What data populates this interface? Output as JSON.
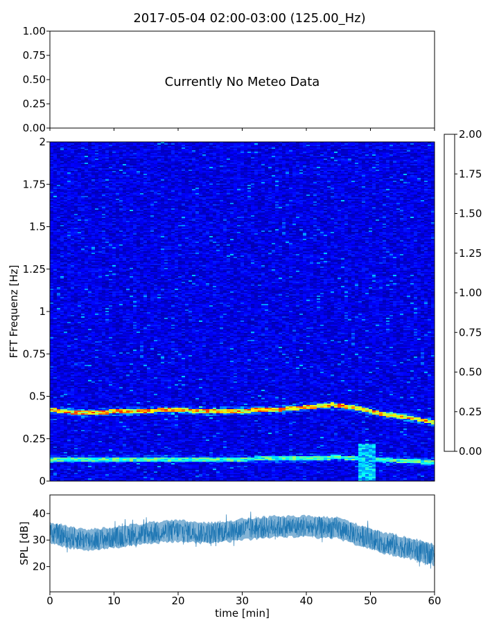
{
  "title": "2017-05-04 02:00-03:00 (125.00_Hz)",
  "chart_data": [
    {
      "type": "line",
      "panel": "meteo",
      "message": "Currently No Meteo Data",
      "xlim": [
        0,
        60
      ],
      "ylim": [
        0,
        1
      ],
      "ytick_labels": [
        "0.00",
        "0.25",
        "0.50",
        "0.75",
        "1.00"
      ],
      "yticks": [
        0,
        0.25,
        0.5,
        0.75,
        1.0
      ],
      "xticks": [
        0,
        10,
        20,
        30,
        40,
        50,
        60
      ],
      "series": []
    },
    {
      "type": "heatmap",
      "panel": "spectrogram",
      "ylabel": "FFT Frequenz [Hz]",
      "xlim": [
        0,
        60
      ],
      "ylim": [
        0,
        2
      ],
      "yticks": [
        0,
        0.25,
        0.5,
        0.75,
        1,
        1.25,
        1.5,
        1.75,
        2
      ],
      "ytick_labels": [
        "0",
        "0.25",
        "0.5",
        "0.75",
        "1",
        "1.25",
        "1.5",
        "1.75",
        "2"
      ],
      "colormap": "jet",
      "clim": [
        0,
        2
      ],
      "colorbar_ticks": [
        0,
        0.25,
        0.5,
        0.75,
        1.0,
        1.25,
        1.5,
        1.75,
        2.0
      ],
      "colorbar_tick_labels": [
        "0.00",
        "0.25",
        "0.50",
        "0.75",
        "1.00",
        "1.25",
        "1.50",
        "1.75",
        "2.00"
      ],
      "background_level": 0.2,
      "ridges": [
        {
          "t": [
            0,
            5,
            10,
            15,
            20,
            25,
            30,
            35,
            40,
            44,
            48,
            52,
            56,
            60
          ],
          "f": [
            0.42,
            0.4,
            0.41,
            0.415,
            0.42,
            0.41,
            0.415,
            0.42,
            0.435,
            0.45,
            0.43,
            0.395,
            0.375,
            0.345
          ],
          "level": 1.4
        },
        {
          "t": [
            0,
            10,
            20,
            30,
            40,
            45,
            50,
            55,
            60
          ],
          "f": [
            0.13,
            0.13,
            0.13,
            0.13,
            0.135,
            0.14,
            0.13,
            0.12,
            0.11
          ],
          "level": 0.9
        }
      ],
      "patch": {
        "t": [
          48,
          51
        ],
        "f": [
          0.0,
          0.22
        ],
        "level": 0.8
      }
    },
    {
      "type": "area",
      "panel": "spl",
      "ylabel": "SPL [dB]",
      "xlabel": "time [min]",
      "xlim": [
        0,
        60
      ],
      "ylim": [
        10.5,
        47
      ],
      "yticks": [
        20,
        30,
        40
      ],
      "ytick_labels": [
        "20",
        "30",
        "40"
      ],
      "xticks": [
        0,
        10,
        20,
        30,
        40,
        50,
        60
      ],
      "xtick_labels": [
        "0",
        "10",
        "20",
        "30",
        "40",
        "50",
        "60"
      ],
      "color": "#1f77b4",
      "series": [
        {
          "t": [
            0,
            3,
            6,
            10,
            15,
            20,
            25,
            30,
            35,
            40,
            45,
            48,
            52,
            56,
            60
          ],
          "center": [
            33,
            31,
            30,
            31,
            32.5,
            33.5,
            32.5,
            34,
            35,
            35,
            34.5,
            32,
            29,
            27,
            24.5
          ],
          "spread_low": [
            27,
            25,
            24,
            25,
            26,
            27,
            26,
            28,
            29,
            29,
            28,
            26,
            23,
            21,
            18
          ],
          "spread_high": [
            40,
            38,
            37,
            38,
            39,
            41,
            39,
            41,
            42,
            42,
            41,
            39,
            35,
            32,
            29
          ]
        }
      ]
    }
  ]
}
